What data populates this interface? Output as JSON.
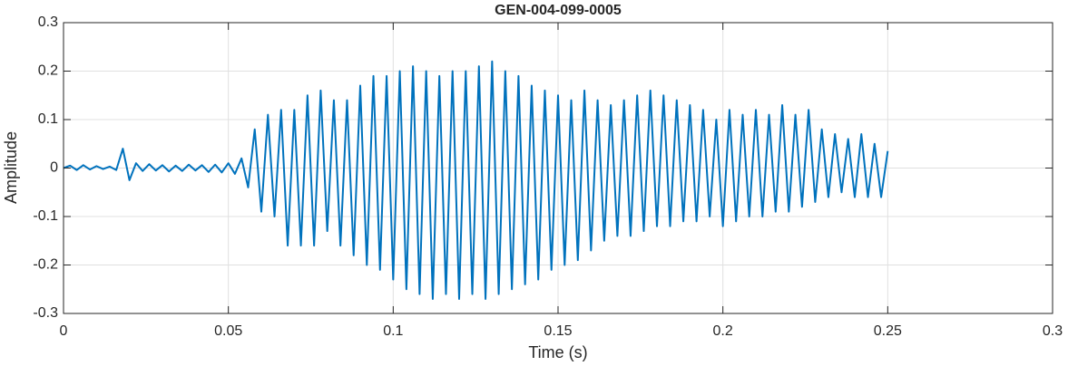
{
  "chart_data": {
    "type": "line",
    "title": "GEN-004-099-0005",
    "xlabel": "Time (s)",
    "ylabel": "Amplitude",
    "x": [
      0,
      0.002,
      0.004,
      0.006,
      0.008,
      0.01,
      0.012,
      0.014,
      0.016,
      0.018,
      0.02,
      0.022,
      0.024,
      0.026,
      0.028,
      0.03,
      0.032,
      0.034,
      0.036,
      0.038,
      0.04,
      0.042,
      0.044,
      0.046,
      0.048,
      0.05,
      0.052,
      0.054,
      0.056,
      0.058,
      0.06,
      0.062,
      0.064,
      0.066,
      0.068,
      0.07,
      0.072,
      0.074,
      0.076,
      0.078,
      0.08,
      0.082,
      0.084,
      0.086,
      0.088,
      0.09,
      0.092,
      0.094,
      0.096,
      0.098,
      0.1,
      0.102,
      0.104,
      0.106,
      0.108,
      0.11,
      0.112,
      0.114,
      0.116,
      0.118,
      0.12,
      0.122,
      0.124,
      0.126,
      0.128,
      0.13,
      0.132,
      0.134,
      0.136,
      0.138,
      0.14,
      0.142,
      0.144,
      0.146,
      0.148,
      0.15,
      0.152,
      0.154,
      0.156,
      0.158,
      0.16,
      0.162,
      0.164,
      0.166,
      0.168,
      0.17,
      0.172,
      0.174,
      0.176,
      0.178,
      0.18,
      0.182,
      0.184,
      0.186,
      0.188,
      0.19,
      0.192,
      0.194,
      0.196,
      0.198,
      0.2,
      0.202,
      0.204,
      0.206,
      0.208,
      0.21,
      0.212,
      0.214,
      0.216,
      0.218,
      0.22,
      0.222,
      0.224,
      0.226,
      0.228,
      0.23,
      0.232,
      0.234,
      0.236,
      0.238,
      0.24,
      0.242,
      0.244,
      0.246,
      0.248,
      0.25
    ],
    "series": [
      {
        "name": "Amplitude",
        "color": "#0072bd",
        "values": [
          0,
          0.005,
          -0.004,
          0.006,
          -0.003,
          0.004,
          -0.002,
          0.003,
          -0.004,
          0.04,
          -0.025,
          0.01,
          -0.006,
          0.008,
          -0.005,
          0.006,
          -0.007,
          0.005,
          -0.006,
          0.007,
          -0.005,
          0.006,
          -0.008,
          0.007,
          -0.009,
          0.01,
          -0.012,
          0.02,
          -0.04,
          0.08,
          -0.09,
          0.11,
          -0.1,
          0.12,
          -0.16,
          0.12,
          -0.16,
          0.15,
          -0.16,
          0.16,
          -0.13,
          0.14,
          -0.16,
          0.14,
          -0.18,
          0.17,
          -0.2,
          0.19,
          -0.21,
          0.19,
          -0.23,
          0.2,
          -0.25,
          0.21,
          -0.26,
          0.2,
          -0.27,
          0.19,
          -0.26,
          0.2,
          -0.27,
          0.2,
          -0.26,
          0.21,
          -0.27,
          0.22,
          -0.26,
          0.2,
          -0.25,
          0.19,
          -0.24,
          0.17,
          -0.23,
          0.16,
          -0.21,
          0.15,
          -0.2,
          0.14,
          -0.19,
          0.16,
          -0.17,
          0.14,
          -0.15,
          0.13,
          -0.14,
          0.14,
          -0.14,
          0.15,
          -0.13,
          0.16,
          -0.12,
          0.15,
          -0.12,
          0.14,
          -0.11,
          0.13,
          -0.11,
          0.12,
          -0.1,
          0.1,
          -0.12,
          0.12,
          -0.11,
          0.11,
          -0.1,
          0.12,
          -0.1,
          0.11,
          -0.09,
          0.13,
          -0.09,
          0.11,
          -0.08,
          0.12,
          -0.07,
          0.08,
          -0.06,
          0.07,
          -0.05,
          0.06,
          -0.06,
          0.07,
          -0.06,
          0.05,
          -0.06,
          0.035
        ]
      }
    ],
    "xlim": [
      0,
      0.3
    ],
    "xticks": [
      0,
      0.05,
      0.1,
      0.15,
      0.2,
      0.25,
      0.3
    ],
    "ylim": [
      -0.3,
      0.3
    ],
    "yticks": [
      -0.3,
      -0.2,
      -0.1,
      0,
      0.1,
      0.2,
      0.3
    ],
    "grid": true
  }
}
